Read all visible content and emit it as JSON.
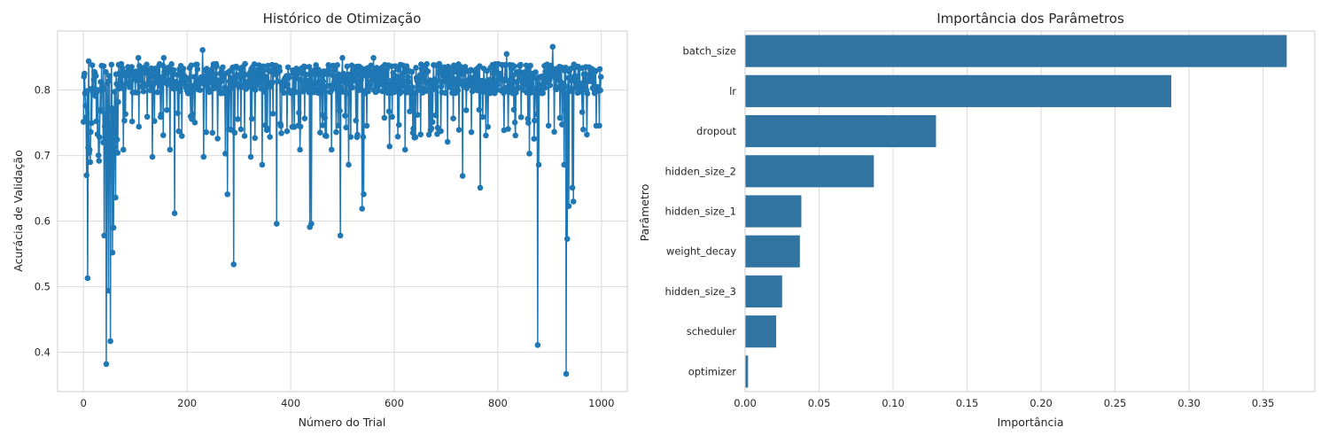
{
  "chart_data": [
    {
      "type": "line",
      "title": "Histórico de Otimização",
      "xlabel": "Número do Trial",
      "ylabel": "Acurácia de Validação",
      "xlim": [
        -50,
        1050
      ],
      "ylim": [
        0.34,
        0.89
      ],
      "xticks": [
        0,
        200,
        400,
        600,
        800,
        1000
      ],
      "yticks": [
        0.4,
        0.5,
        0.6,
        0.7,
        0.8
      ],
      "grid": true,
      "marker": "circle",
      "series_summary": {
        "n_trials": 1000,
        "typical_band": [
          0.77,
          0.84
        ]
      },
      "notable_points": [
        {
          "x": 2,
          "y": 0.825
        },
        {
          "x": 4,
          "y": 0.776
        },
        {
          "x": 6,
          "y": 0.67
        },
        {
          "x": 8,
          "y": 0.513
        },
        {
          "x": 10,
          "y": 0.844
        },
        {
          "x": 13,
          "y": 0.69
        },
        {
          "x": 20,
          "y": 0.816
        },
        {
          "x": 30,
          "y": 0.692
        },
        {
          "x": 35,
          "y": 0.837
        },
        {
          "x": 40,
          "y": 0.578
        },
        {
          "x": 44,
          "y": 0.382
        },
        {
          "x": 48,
          "y": 0.494
        },
        {
          "x": 52,
          "y": 0.417
        },
        {
          "x": 56,
          "y": 0.552
        },
        {
          "x": 58,
          "y": 0.59
        },
        {
          "x": 62,
          "y": 0.636
        },
        {
          "x": 77,
          "y": 0.709
        },
        {
          "x": 106,
          "y": 0.849
        },
        {
          "x": 133,
          "y": 0.698
        },
        {
          "x": 155,
          "y": 0.849
        },
        {
          "x": 167,
          "y": 0.709
        },
        {
          "x": 176,
          "y": 0.612
        },
        {
          "x": 184,
          "y": 0.737
        },
        {
          "x": 230,
          "y": 0.861
        },
        {
          "x": 232,
          "y": 0.698
        },
        {
          "x": 274,
          "y": 0.703
        },
        {
          "x": 278,
          "y": 0.641
        },
        {
          "x": 290,
          "y": 0.534
        },
        {
          "x": 323,
          "y": 0.698
        },
        {
          "x": 345,
          "y": 0.686
        },
        {
          "x": 373,
          "y": 0.596
        },
        {
          "x": 393,
          "y": 0.737
        },
        {
          "x": 418,
          "y": 0.709
        },
        {
          "x": 437,
          "y": 0.591
        },
        {
          "x": 440,
          "y": 0.596
        },
        {
          "x": 479,
          "y": 0.709
        },
        {
          "x": 496,
          "y": 0.578
        },
        {
          "x": 500,
          "y": 0.849
        },
        {
          "x": 512,
          "y": 0.686
        },
        {
          "x": 538,
          "y": 0.619
        },
        {
          "x": 541,
          "y": 0.641
        },
        {
          "x": 560,
          "y": 0.849
        },
        {
          "x": 591,
          "y": 0.714
        },
        {
          "x": 621,
          "y": 0.709
        },
        {
          "x": 667,
          "y": 0.732
        },
        {
          "x": 703,
          "y": 0.721
        },
        {
          "x": 732,
          "y": 0.669
        },
        {
          "x": 766,
          "y": 0.651
        },
        {
          "x": 817,
          "y": 0.855
        },
        {
          "x": 861,
          "y": 0.703
        },
        {
          "x": 877,
          "y": 0.411
        },
        {
          "x": 879,
          "y": 0.686
        },
        {
          "x": 906,
          "y": 0.866
        },
        {
          "x": 928,
          "y": 0.686
        },
        {
          "x": 932,
          "y": 0.367
        },
        {
          "x": 934,
          "y": 0.573
        },
        {
          "x": 937,
          "y": 0.623
        },
        {
          "x": 944,
          "y": 0.651
        },
        {
          "x": 946,
          "y": 0.63
        },
        {
          "x": 972,
          "y": 0.732
        },
        {
          "x": 999,
          "y": 0.82
        }
      ]
    },
    {
      "type": "bar",
      "orientation": "horizontal",
      "title": "Importância dos Parâmetros",
      "xlabel": "Importância",
      "ylabel": "Parâmetro",
      "xlim": [
        0,
        0.385
      ],
      "xticks": [
        "0.00",
        "0.05",
        "0.10",
        "0.15",
        "0.20",
        "0.25",
        "0.30",
        "0.35"
      ],
      "grid": true,
      "bar_color": "#3274a1",
      "categories": [
        "batch_size",
        "lr",
        "dropout",
        "hidden_size_2",
        "hidden_size_1",
        "weight_decay",
        "hidden_size_3",
        "scheduler",
        "optimizer"
      ],
      "values": [
        0.366,
        0.288,
        0.129,
        0.087,
        0.038,
        0.037,
        0.025,
        0.021,
        0.002
      ]
    }
  ],
  "colors": {
    "line": "#1f77b4",
    "bar": "#3274a1",
    "grid": "#d9d9d9",
    "frame": "#cccccc"
  }
}
